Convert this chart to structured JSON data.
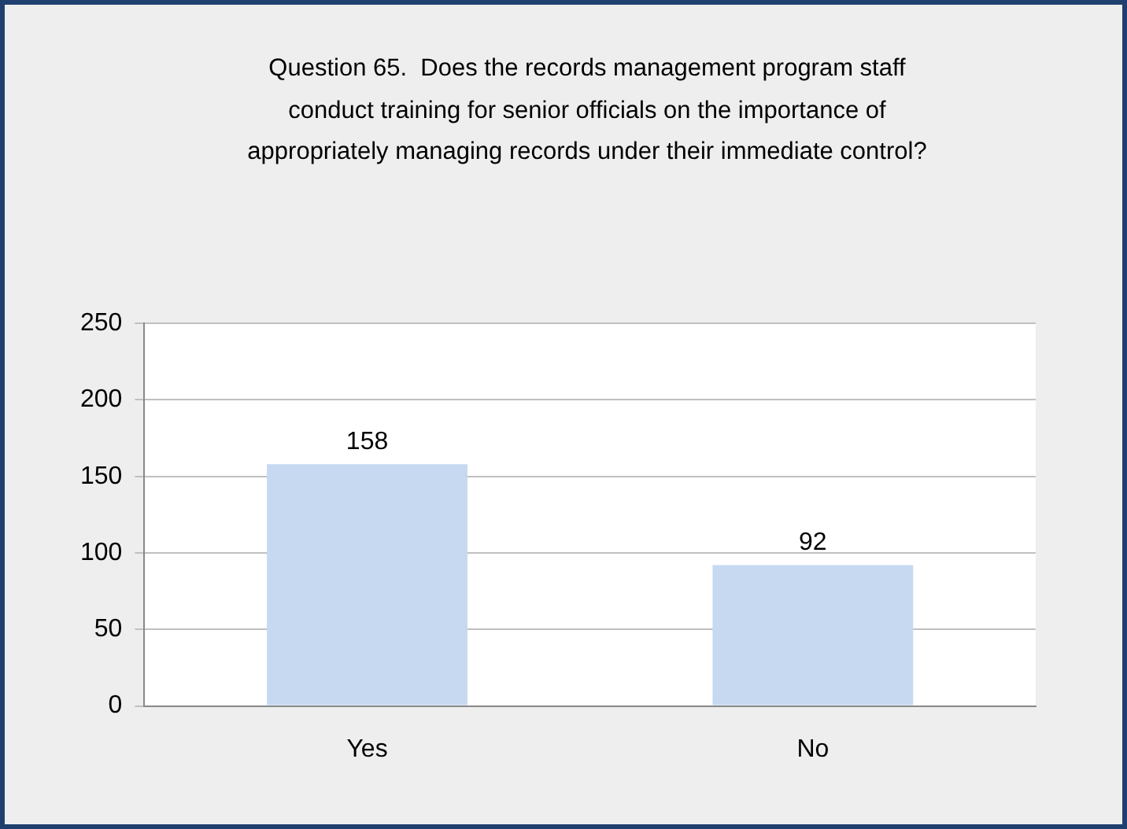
{
  "chart_data": {
    "type": "bar",
    "title": "Question 65.  Does the records management program staff conduct training for senior officials on the importance of appropriately managing records under their immediate control?",
    "categories": [
      "Yes",
      "No"
    ],
    "values": [
      158,
      92
    ],
    "color": "#c6d9f1",
    "ylim": [
      0,
      250
    ],
    "yticks": [
      0,
      50,
      100,
      150,
      200,
      250
    ],
    "grid": "y",
    "data_labels": true
  }
}
